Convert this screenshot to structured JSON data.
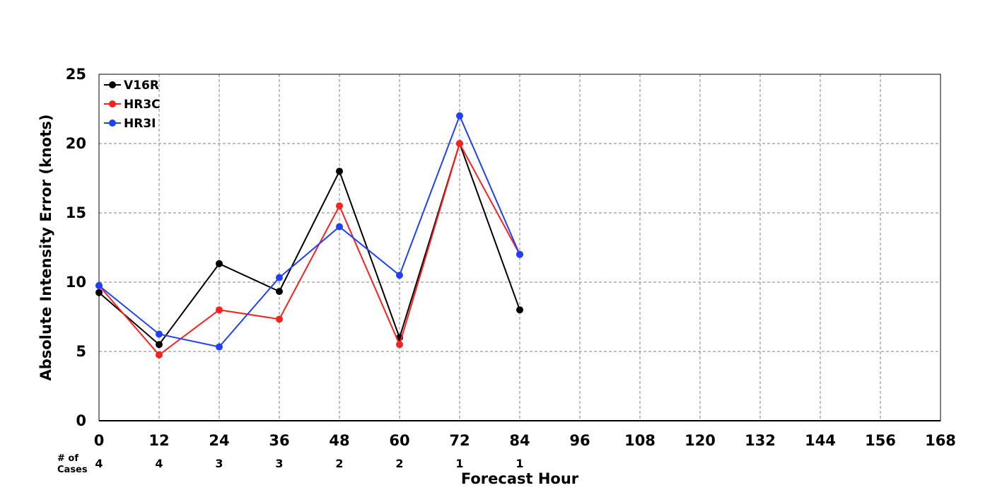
{
  "chart_data": {
    "type": "line",
    "title": "",
    "xlabel": "Forecast Hour",
    "ylabel": "Absolute Intensity Error (knots)",
    "xlim": [
      0,
      168
    ],
    "ylim": [
      0,
      25
    ],
    "x_ticks": [
      "0",
      "12",
      "24",
      "36",
      "48",
      "60",
      "72",
      "84",
      "96",
      "108",
      "120",
      "132",
      "144",
      "156",
      "168"
    ],
    "y_ticks": [
      "0",
      "5",
      "10",
      "15",
      "20",
      "25"
    ],
    "grid": true,
    "legend_position": "top-left",
    "series": [
      {
        "name": "V16R",
        "color": "#000000",
        "x": [
          0,
          12,
          24,
          36,
          48,
          60,
          72,
          84
        ],
        "values": [
          9.25,
          5.5,
          11.33,
          9.33,
          18.0,
          6.0,
          20.0,
          8.0
        ]
      },
      {
        "name": "HR3C",
        "color": "#ff2020",
        "x": [
          0,
          12,
          24,
          36,
          48,
          60,
          72,
          84
        ],
        "values": [
          9.75,
          4.75,
          8.0,
          7.33,
          15.5,
          5.5,
          20.0,
          12.0
        ]
      },
      {
        "name": "HR3I",
        "color": "#2040ff",
        "x": [
          0,
          12,
          24,
          36,
          48,
          60,
          72,
          84
        ],
        "values": [
          9.75,
          6.25,
          5.33,
          10.33,
          14.0,
          10.5,
          22.0,
          12.0
        ]
      }
    ],
    "cases": {
      "label_line1": "# of",
      "label_line2": "Cases",
      "x": [
        0,
        12,
        24,
        36,
        48,
        60,
        72,
        84
      ],
      "counts": [
        "4",
        "4",
        "3",
        "3",
        "2",
        "2",
        "1",
        "1"
      ]
    }
  }
}
